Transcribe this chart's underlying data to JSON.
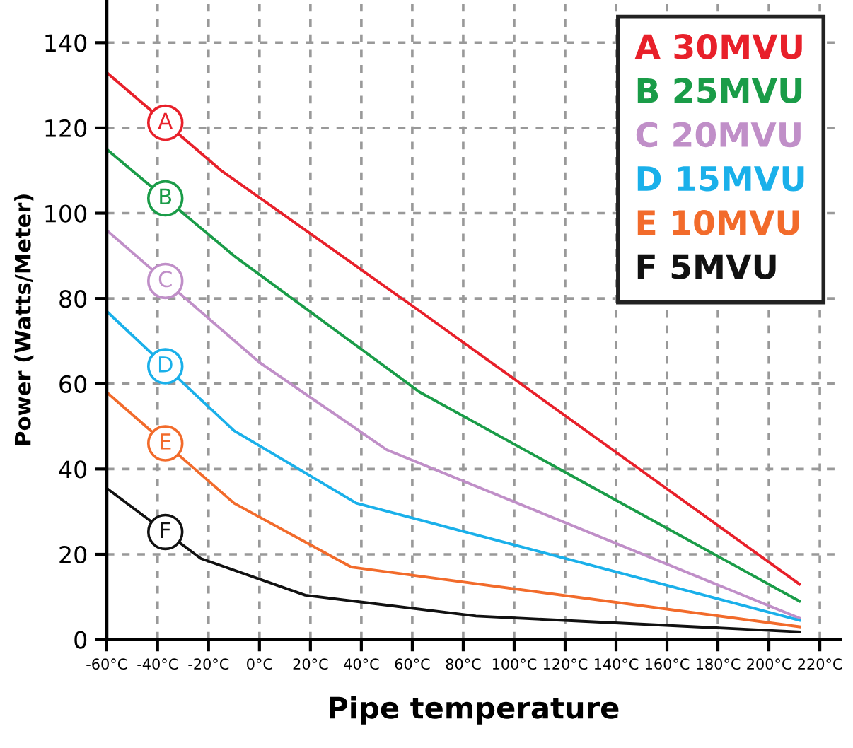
{
  "chart_data": {
    "type": "line",
    "xlabel": "Pipe temperature",
    "ylabel": "Power (Watts/Meter)",
    "xlim": [
      -60,
      228
    ],
    "ylim": [
      0,
      150
    ],
    "xticks": [
      {
        "value": -60,
        "label": "-60°C"
      },
      {
        "value": -40,
        "label": "-40°C"
      },
      {
        "value": -20,
        "label": "-20°C"
      },
      {
        "value": 0,
        "label": "0°C"
      },
      {
        "value": 20,
        "label": "20°C"
      },
      {
        "value": 40,
        "label": "40°C"
      },
      {
        "value": 60,
        "label": "60°C"
      },
      {
        "value": 80,
        "label": "80°C"
      },
      {
        "value": 100,
        "label": "100°C"
      },
      {
        "value": 120,
        "label": "120°C"
      },
      {
        "value": 140,
        "label": "140°C"
      },
      {
        "value": 160,
        "label": "160°C"
      },
      {
        "value": 180,
        "label": "180°C"
      },
      {
        "value": 200,
        "label": "200°C"
      },
      {
        "value": 220,
        "label": "220°C"
      }
    ],
    "yticks": [
      0,
      20,
      40,
      60,
      80,
      100,
      120,
      140
    ],
    "grid": true,
    "legend": "top right",
    "marker": "none",
    "line_style": "solid",
    "series": [
      {
        "name": "A 30MVU",
        "color": "#e8202a",
        "x": [
          -60,
          -15,
          63,
          212
        ],
        "values": [
          133,
          110,
          77,
          13
        ]
      },
      {
        "name": "B 25MVU",
        "color": "#1a9c48",
        "x": [
          -60,
          -10,
          63,
          212
        ],
        "values": [
          115,
          90,
          58,
          9
        ]
      },
      {
        "name": "C 20MVU",
        "color": "#c08fc8",
        "x": [
          -60,
          0,
          50,
          212
        ],
        "values": [
          96,
          65,
          44.5,
          5
        ]
      },
      {
        "name": "D 15MVU",
        "color": "#1ab0ea",
        "x": [
          -60,
          -10,
          38,
          212
        ],
        "values": [
          77,
          49,
          32,
          4.5
        ]
      },
      {
        "name": "E 10MVU",
        "color": "#f26b2b",
        "x": [
          -60,
          -10,
          36,
          212
        ],
        "values": [
          58,
          32,
          17,
          3
        ]
      },
      {
        "name": "F 5MVU",
        "color": "#111111",
        "x": [
          -60,
          -23,
          18,
          85,
          212
        ],
        "values": [
          35.5,
          19,
          10.4,
          5.5,
          1.8
        ]
      }
    ],
    "annotations": [
      "A",
      "B",
      "C",
      "D",
      "E",
      "F"
    ]
  }
}
